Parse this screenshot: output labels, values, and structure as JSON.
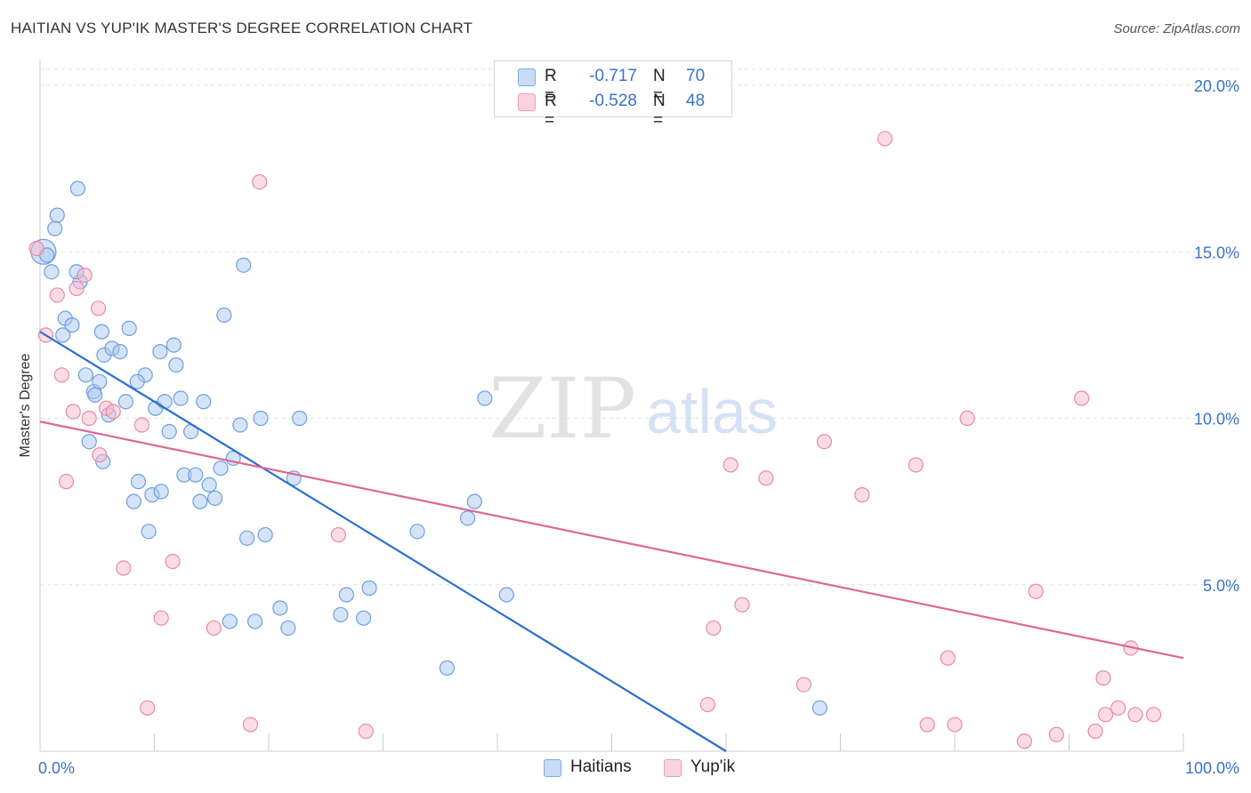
{
  "header": {
    "title": "HAITIAN VS YUP'IK MASTER'S DEGREE CORRELATION CHART",
    "source": "Source: ZipAtlas.com"
  },
  "watermark": {
    "zip": "ZIP",
    "atlas": "atlas"
  },
  "legend": {
    "rows": [
      {
        "r_label": "R =",
        "r_value": "-0.717",
        "n_label": "N =",
        "n_value": "70",
        "color": "#a9c8f2"
      },
      {
        "r_label": "R =",
        "r_value": "-0.528",
        "n_label": "N =",
        "n_value": "48",
        "color": "#f7b9cc"
      }
    ]
  },
  "bottom_legend": [
    {
      "label": "Haitians",
      "color": "#a9c8f2"
    },
    {
      "label": "Yup'ik",
      "color": "#f7b9cc"
    }
  ],
  "colors": {
    "haitians_fill": "#a9c8f2",
    "haitians_stroke": "#6f9fdf",
    "haitians_line": "#2a6fce",
    "yupik_fill": "#f7b9cc",
    "yupik_stroke": "#e889a6",
    "yupik_line": "#e06791",
    "tick_label": "#3b72c7"
  },
  "chart_data": {
    "type": "scatter",
    "title": "HAITIAN VS YUP'IK MASTER'S DEGREE CORRELATION CHART",
    "xlabel": "",
    "ylabel": "Master's Degree",
    "xlim": [
      0,
      100
    ],
    "ylim": [
      0,
      20.5
    ],
    "x_tick_labels": [
      {
        "value": 0,
        "label": "0.0%"
      },
      {
        "value": 100,
        "label": "100.0%"
      }
    ],
    "y_tick_labels": [
      {
        "value": 5,
        "label": "5.0%"
      },
      {
        "value": 10,
        "label": "10.0%"
      },
      {
        "value": 15,
        "label": "15.0%"
      },
      {
        "value": 20,
        "label": "20.0%"
      }
    ],
    "x_minor_ticks": [
      0,
      10,
      20,
      30,
      40,
      50,
      60,
      70,
      80,
      90,
      100
    ],
    "y_gridlines": [
      5,
      10,
      15,
      20
    ],
    "grid": true,
    "series": [
      {
        "name": "Haitians",
        "R": -0.717,
        "N": 70,
        "trend": {
          "x": [
            0,
            60
          ],
          "y": [
            12.6,
            0
          ]
        },
        "points": [
          [
            0.3,
            15.0
          ],
          [
            0.6,
            14.9
          ],
          [
            1,
            14.4
          ],
          [
            1.3,
            15.7
          ],
          [
            1.5,
            16.1
          ],
          [
            3.3,
            16.9
          ],
          [
            2,
            12.5
          ],
          [
            2.2,
            13
          ],
          [
            2.8,
            12.8
          ],
          [
            3.5,
            14.1
          ],
          [
            4,
            11.3
          ],
          [
            4.3,
            9.3
          ],
          [
            4.7,
            10.8
          ],
          [
            4.8,
            10.7
          ],
          [
            5.2,
            11.1
          ],
          [
            5.5,
            8.7
          ],
          [
            6,
            10.1
          ],
          [
            5.4,
            12.6
          ],
          [
            5.6,
            11.9
          ],
          [
            6.3,
            12.1
          ],
          [
            7,
            12.0
          ],
          [
            7.5,
            10.5
          ],
          [
            7.8,
            12.7
          ],
          [
            8.2,
            7.5
          ],
          [
            8.6,
            8.1
          ],
          [
            9.2,
            11.3
          ],
          [
            9.5,
            6.6
          ],
          [
            9.8,
            7.7
          ],
          [
            10.1,
            10.3
          ],
          [
            10.5,
            12.0
          ],
          [
            10.6,
            7.8
          ],
          [
            10.9,
            10.5
          ],
          [
            11.3,
            9.6
          ],
          [
            11.7,
            12.2
          ],
          [
            11.9,
            11.6
          ],
          [
            12.3,
            10.6
          ],
          [
            12.6,
            8.3
          ],
          [
            13.2,
            9.6
          ],
          [
            13.6,
            8.3
          ],
          [
            14,
            7.5
          ],
          [
            14.3,
            10.5
          ],
          [
            14.8,
            8.0
          ],
          [
            15.3,
            7.6
          ],
          [
            15.8,
            8.5
          ],
          [
            16.1,
            13.1
          ],
          [
            16.6,
            3.9
          ],
          [
            16.9,
            8.8
          ],
          [
            17.5,
            9.8
          ],
          [
            17.8,
            14.6
          ],
          [
            18.1,
            6.4
          ],
          [
            18.8,
            3.9
          ],
          [
            19.3,
            10.0
          ],
          [
            19.7,
            6.5
          ],
          [
            21,
            4.3
          ],
          [
            21.7,
            3.7
          ],
          [
            22.2,
            8.2
          ],
          [
            22.7,
            10.0
          ],
          [
            26.3,
            4.1
          ],
          [
            26.8,
            4.7
          ],
          [
            28.3,
            4.0
          ],
          [
            28.8,
            4.9
          ],
          [
            33,
            6.6
          ],
          [
            35.6,
            2.5
          ],
          [
            37.4,
            7.0
          ],
          [
            38,
            7.5
          ],
          [
            38.9,
            10.6
          ],
          [
            40.8,
            4.7
          ],
          [
            68.2,
            1.3
          ],
          [
            3.2,
            14.4
          ],
          [
            8.5,
            11.1
          ]
        ]
      },
      {
        "name": "Yup'ik",
        "R": -0.528,
        "N": 48,
        "trend": {
          "x": [
            0,
            100
          ],
          "y": [
            9.9,
            2.8
          ]
        },
        "points": [
          [
            0.5,
            12.5
          ],
          [
            1.5,
            13.7
          ],
          [
            1.9,
            11.3
          ],
          [
            2.3,
            8.1
          ],
          [
            2.9,
            10.2
          ],
          [
            3.2,
            13.9
          ],
          [
            3.9,
            14.3
          ],
          [
            4.3,
            10.0
          ],
          [
            5.2,
            8.9
          ],
          [
            5.1,
            13.3
          ],
          [
            5.8,
            10.3
          ],
          [
            6.4,
            10.2
          ],
          [
            7.3,
            5.5
          ],
          [
            8.9,
            9.8
          ],
          [
            9.4,
            1.3
          ],
          [
            10.6,
            4.0
          ],
          [
            11.6,
            5.7
          ],
          [
            15.2,
            3.7
          ],
          [
            18.4,
            0.8
          ],
          [
            19.2,
            17.1
          ],
          [
            26.1,
            6.5
          ],
          [
            28.5,
            0.6
          ],
          [
            58.4,
            1.4
          ],
          [
            58.9,
            3.7
          ],
          [
            60.4,
            8.6
          ],
          [
            61.4,
            4.4
          ],
          [
            63.5,
            8.2
          ],
          [
            66.8,
            2.0
          ],
          [
            68.6,
            9.3
          ],
          [
            71.9,
            7.7
          ],
          [
            73.9,
            18.4
          ],
          [
            76.6,
            8.6
          ],
          [
            77.6,
            0.8
          ],
          [
            79.4,
            2.8
          ],
          [
            80,
            0.8
          ],
          [
            81.1,
            10.0
          ],
          [
            86.1,
            0.3
          ],
          [
            87.1,
            4.8
          ],
          [
            88.9,
            0.5
          ],
          [
            91.1,
            10.6
          ],
          [
            92.3,
            0.6
          ],
          [
            93,
            2.2
          ],
          [
            93.2,
            1.1
          ],
          [
            94.3,
            1.3
          ],
          [
            95.4,
            3.1
          ],
          [
            95.8,
            1.1
          ],
          [
            97.4,
            1.1
          ],
          [
            -0.3,
            15.1
          ]
        ]
      }
    ]
  }
}
